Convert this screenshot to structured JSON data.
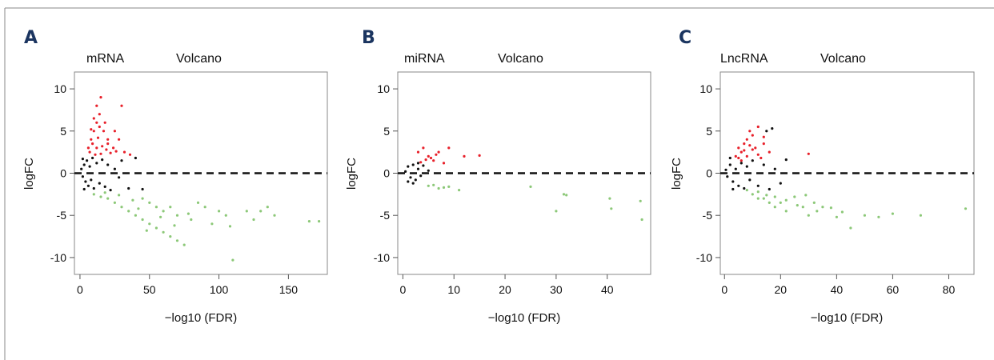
{
  "colors": {
    "up": "#e8202a",
    "down": "#8cc878",
    "ns": "#111111",
    "letter": "#1b3560",
    "frame": "#888888"
  },
  "chart_data": [
    {
      "type": "scatter",
      "panel_label": "A",
      "title_left": "mRNA",
      "title_right": "Volcano",
      "xlabel": "−log10 (FDR)",
      "ylabel": "logFC",
      "xlim": [
        -4,
        178
      ],
      "ylim": [
        -12,
        12
      ],
      "xticks": [
        0,
        50,
        100,
        150
      ],
      "yticks": [
        -10,
        -5,
        0,
        5,
        10
      ],
      "reference_line": {
        "y": 0,
        "style": "dashed"
      },
      "series": [
        {
          "key": "up",
          "color": "up",
          "points": [
            [
              6,
              3
            ],
            [
              8,
              4
            ],
            [
              10,
              5
            ],
            [
              12,
              6
            ],
            [
              14,
              7
            ],
            [
              12,
              8
            ],
            [
              15,
              9
            ],
            [
              18,
              6
            ],
            [
              20,
              4
            ],
            [
              24,
              3
            ],
            [
              28,
              4
            ],
            [
              30,
              8
            ],
            [
              7,
              2.5
            ],
            [
              9,
              3.5
            ],
            [
              11,
              2.2
            ],
            [
              13,
              4.2
            ],
            [
              16,
              3.2
            ],
            [
              19,
              2.8
            ],
            [
              22,
              2.4
            ],
            [
              26,
              2.6
            ],
            [
              32,
              2.5
            ],
            [
              36,
              2.2
            ],
            [
              10,
              6.5
            ],
            [
              14,
              5.5
            ],
            [
              17,
              5
            ],
            [
              8,
              5.2
            ],
            [
              12,
              3
            ],
            [
              15,
              2.3
            ],
            [
              20,
              3.5
            ],
            [
              25,
              5
            ]
          ]
        },
        {
          "key": "down",
          "color": "down",
          "points": [
            [
              10,
              -2.5
            ],
            [
              15,
              -2.8
            ],
            [
              20,
              -3
            ],
            [
              25,
              -3.5
            ],
            [
              30,
              -4
            ],
            [
              35,
              -4.5
            ],
            [
              40,
              -5
            ],
            [
              45,
              -5.5
            ],
            [
              50,
              -6
            ],
            [
              55,
              -6.5
            ],
            [
              60,
              -7
            ],
            [
              65,
              -7.5
            ],
            [
              70,
              -8
            ],
            [
              75,
              -8.5
            ],
            [
              45,
              -3
            ],
            [
              50,
              -3.5
            ],
            [
              55,
              -4
            ],
            [
              60,
              -4.5
            ],
            [
              65,
              -4
            ],
            [
              70,
              -5
            ],
            [
              80,
              -5.5
            ],
            [
              85,
              -3.5
            ],
            [
              90,
              -4
            ],
            [
              95,
              -6
            ],
            [
              100,
              -4.5
            ],
            [
              105,
              -5
            ],
            [
              110,
              -10.3
            ],
            [
              120,
              -4.5
            ],
            [
              125,
              -5.5
            ],
            [
              130,
              -4.5
            ],
            [
              135,
              -4
            ],
            [
              140,
              -5
            ],
            [
              165,
              -5.7
            ],
            [
              172,
              -5.7
            ],
            [
              18,
              -2.3
            ],
            [
              28,
              -2.6
            ],
            [
              38,
              -3.2
            ],
            [
              42,
              -4.2
            ],
            [
              48,
              -6.8
            ],
            [
              58,
              -5.2
            ],
            [
              68,
              -6.2
            ],
            [
              78,
              -4.8
            ],
            [
              108,
              -6.3
            ]
          ]
        },
        {
          "key": "ns",
          "color": "ns",
          "points": [
            [
              1,
              0.5
            ],
            [
              2,
              -0.4
            ],
            [
              3,
              1
            ],
            [
              4,
              -1
            ],
            [
              5,
              1.5
            ],
            [
              6,
              -1.5
            ],
            [
              7,
              0.8
            ],
            [
              8,
              -0.8
            ],
            [
              9,
              1.8
            ],
            [
              10,
              -1.8
            ],
            [
              12,
              1.2
            ],
            [
              14,
              -1.2
            ],
            [
              16,
              1.6
            ],
            [
              18,
              -1.6
            ],
            [
              20,
              1
            ],
            [
              22,
              -2
            ],
            [
              25,
              0.5
            ],
            [
              28,
              -0.5
            ],
            [
              30,
              1.5
            ],
            [
              35,
              -1.8
            ],
            [
              40,
              1.8
            ],
            [
              45,
              -1.9
            ],
            [
              2,
              1.7
            ],
            [
              3,
              -1.9
            ]
          ]
        }
      ]
    },
    {
      "type": "scatter",
      "panel_label": "B",
      "title_left": "miRNA",
      "title_right": "Volcano",
      "xlabel": "−log10 (FDR)",
      "ylabel": "logFC",
      "xlim": [
        -1,
        48.5
      ],
      "ylim": [
        -12,
        12
      ],
      "xticks": [
        0,
        10,
        20,
        30,
        40
      ],
      "yticks": [
        -10,
        -5,
        0,
        5,
        10
      ],
      "reference_line": {
        "y": 0,
        "style": "dashed"
      },
      "series": [
        {
          "key": "up",
          "color": "up",
          "points": [
            [
              3,
              2.5
            ],
            [
              4,
              3
            ],
            [
              5,
              2
            ],
            [
              6,
              1.5
            ],
            [
              7,
              2.5
            ],
            [
              8,
              1.2
            ],
            [
              9,
              3
            ],
            [
              12,
              2
            ],
            [
              15,
              2.1
            ],
            [
              3.5,
              1.3
            ],
            [
              5.5,
              1.8
            ],
            [
              6.5,
              2.2
            ],
            [
              4.5,
              1.6
            ]
          ]
        },
        {
          "key": "down",
          "color": "down",
          "points": [
            [
              5,
              -1.5
            ],
            [
              7,
              -1.8
            ],
            [
              9,
              -1.6
            ],
            [
              11,
              -2
            ],
            [
              25,
              -1.6
            ],
            [
              30,
              -4.5
            ],
            [
              31.5,
              -2.5
            ],
            [
              32,
              -2.6
            ],
            [
              40.5,
              -3
            ],
            [
              40.8,
              -4.2
            ],
            [
              46.5,
              -3.3
            ],
            [
              46.8,
              -5.5
            ],
            [
              6,
              -1.4
            ],
            [
              8,
              -1.7
            ]
          ]
        },
        {
          "key": "ns",
          "color": "ns",
          "points": [
            [
              0.5,
              0.2
            ],
            [
              1,
              0.8
            ],
            [
              1.5,
              -0.5
            ],
            [
              2,
              1
            ],
            [
              2.5,
              -0.8
            ],
            [
              3,
              0.5
            ],
            [
              3.5,
              -0.3
            ],
            [
              4,
              0.9
            ],
            [
              1,
              -1
            ],
            [
              2,
              -1.2
            ],
            [
              3,
              1.2
            ],
            [
              5,
              0.3
            ]
          ]
        }
      ]
    },
    {
      "type": "scatter",
      "panel_label": "C",
      "title_left": "LncRNA",
      "title_right": "Volcano",
      "xlabel": "−log10 (FDR)",
      "ylabel": "logFC",
      "xlim": [
        -1.5,
        89
      ],
      "ylim": [
        -12,
        12
      ],
      "xticks": [
        0,
        20,
        40,
        60,
        80
      ],
      "yticks": [
        -10,
        -5,
        0,
        5,
        10
      ],
      "reference_line": {
        "y": 0,
        "style": "dashed"
      },
      "series": [
        {
          "key": "up",
          "color": "up",
          "points": [
            [
              4,
              2
            ],
            [
              5,
              3
            ],
            [
              6,
              2.5
            ],
            [
              7,
              3.5
            ],
            [
              8,
              4
            ],
            [
              9,
              5
            ],
            [
              10,
              4.5
            ],
            [
              11,
              3
            ],
            [
              12,
              5.5
            ],
            [
              14,
              3.5
            ],
            [
              16,
              2.5
            ],
            [
              6,
              1.5
            ],
            [
              8,
              2
            ],
            [
              10,
              2.8
            ],
            [
              12,
              2.2
            ],
            [
              14,
              4.3
            ],
            [
              5,
              1.8
            ],
            [
              7,
              2.7
            ],
            [
              9,
              3.3
            ],
            [
              13,
              1.8
            ],
            [
              30,
              2.3
            ]
          ]
        },
        {
          "key": "down",
          "color": "down",
          "points": [
            [
              8,
              -2
            ],
            [
              10,
              -2.5
            ],
            [
              12,
              -3
            ],
            [
              14,
              -3
            ],
            [
              16,
              -3.5
            ],
            [
              18,
              -4
            ],
            [
              20,
              -3.5
            ],
            [
              22,
              -4.5
            ],
            [
              25,
              -2.8
            ],
            [
              28,
              -4
            ],
            [
              30,
              -5
            ],
            [
              32,
              -3.5
            ],
            [
              35,
              -4
            ],
            [
              40,
              -5.2
            ],
            [
              45,
              -6.5
            ],
            [
              50,
              -5
            ],
            [
              55,
              -5.2
            ],
            [
              60,
              -4.8
            ],
            [
              70,
              -5
            ],
            [
              86,
              -4.2
            ],
            [
              12,
              -2.2
            ],
            [
              15,
              -2.6
            ],
            [
              18,
              -2.8
            ],
            [
              22,
              -3.2
            ],
            [
              26,
              -3.8
            ],
            [
              29,
              -2.6
            ],
            [
              33,
              -4.5
            ],
            [
              38,
              -4.1
            ],
            [
              42,
              -4.6
            ]
          ]
        },
        {
          "key": "ns",
          "color": "ns",
          "points": [
            [
              0.5,
              0.4
            ],
            [
              1,
              -0.4
            ],
            [
              2,
              1
            ],
            [
              3,
              -1
            ],
            [
              4,
              0.5
            ],
            [
              5,
              -1.5
            ],
            [
              6,
              1.2
            ],
            [
              7,
              -1.8
            ],
            [
              8,
              0.8
            ],
            [
              9,
              -0.8
            ],
            [
              10,
              1.5
            ],
            [
              12,
              -1.5
            ],
            [
              14,
              1
            ],
            [
              16,
              -1.9
            ],
            [
              18,
              0.5
            ],
            [
              20,
              -1.2
            ],
            [
              22,
              1.6
            ],
            [
              15,
              5
            ],
            [
              17,
              5.3
            ],
            [
              2,
              1.8
            ],
            [
              3,
              -1.9
            ]
          ]
        }
      ]
    }
  ]
}
